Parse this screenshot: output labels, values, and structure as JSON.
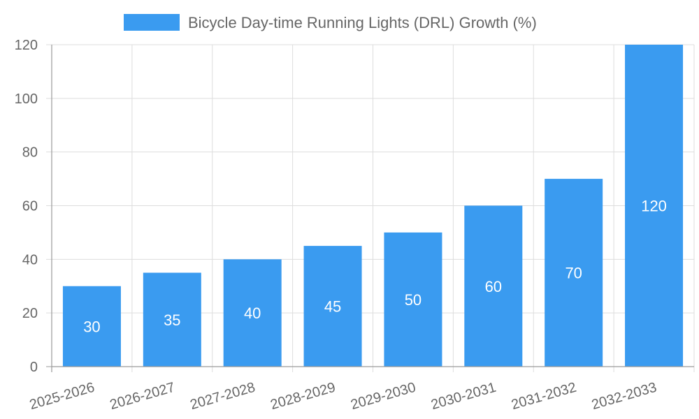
{
  "chart_data": {
    "type": "bar",
    "categories": [
      "2025-2026",
      "2026-2027",
      "2027-2028",
      "2028-2029",
      "2029-2030",
      "2030-2031",
      "2031-2032",
      "2032-2033"
    ],
    "series": [
      {
        "name": "Bicycle Day-time Running Lights (DRL) Growth (%)",
        "values": [
          30,
          35,
          40,
          45,
          50,
          60,
          70,
          120
        ],
        "color": "#3a9bf0"
      }
    ],
    "ylim": [
      0,
      120
    ],
    "yticks": [
      "0",
      "20",
      "40",
      "60",
      "80",
      "100",
      "120"
    ],
    "grid": true,
    "legend": "top-center",
    "data_labels": true
  }
}
